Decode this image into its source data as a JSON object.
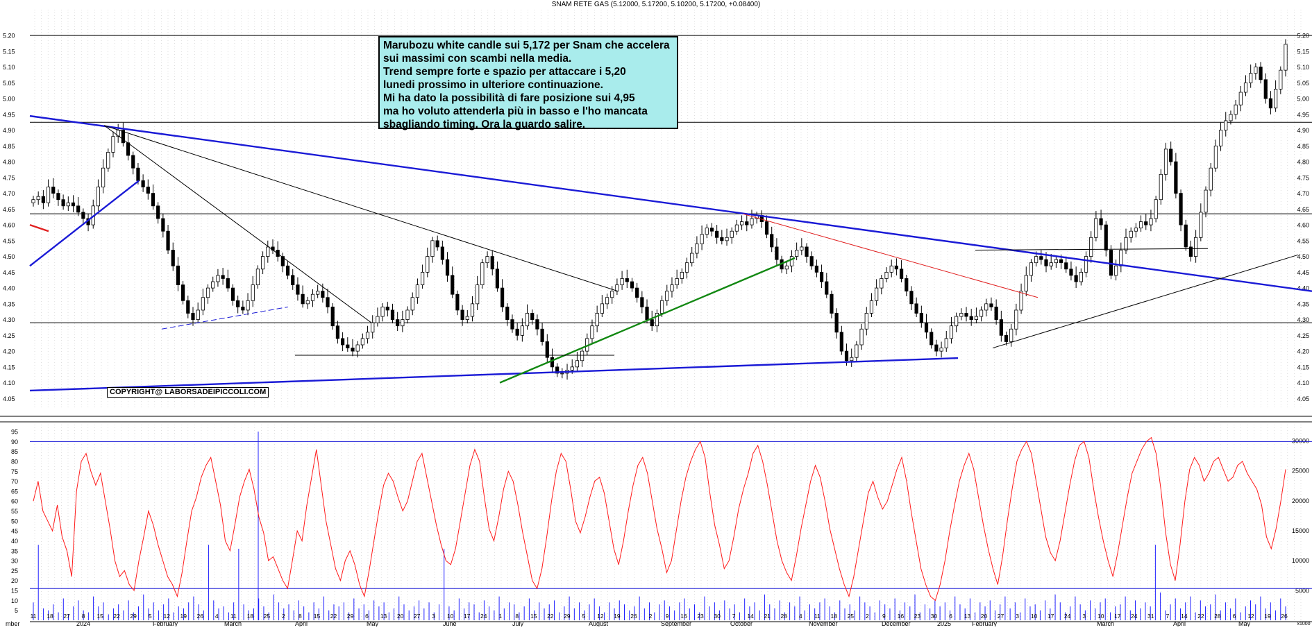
{
  "header": {
    "title": "SNAM RETE GAS (5.12000, 5.17200, 5.10200, 5.17200, +0.08400)"
  },
  "note": {
    "lines": [
      "Marubozu white candle sui 5,172 per Snam che accelera",
      "sui massimi con scambi nella media.",
      "Trend sempre forte e spazio per attaccare i 5,20",
      "lunedi prossimo in ulteriore continuazione.",
      "Mi ha dato la possibilità di fare posizione sui 4,95",
      "ma ho voluto attenderla più in basso e l'ho mancata",
      "sbagliando timing. Ora la guardo salire."
    ]
  },
  "copyright": "COPYRIGHT@ LABORSADEIPICCOLI.COM",
  "chart_data": [
    {
      "type": "candlestick",
      "panel": "price",
      "ylim": [
        4.02,
        5.22
      ],
      "yticks": [
        "5.20",
        "5.15",
        "5.10",
        "5.05",
        "5.00",
        "4.95",
        "4.90",
        "4.85",
        "4.80",
        "4.75",
        "4.70",
        "4.65",
        "4.60",
        "4.55",
        "4.50",
        "4.45",
        "4.40",
        "4.35",
        "4.30",
        "4.25",
        "4.20",
        "4.15",
        "4.10",
        "4.05"
      ],
      "ytick_values": [
        5.2,
        5.15,
        5.1,
        5.05,
        5.0,
        4.95,
        4.9,
        4.85,
        4.8,
        4.75,
        4.7,
        4.65,
        4.6,
        4.55,
        4.5,
        4.45,
        4.4,
        4.35,
        4.3,
        4.25,
        4.2,
        4.15,
        4.1,
        4.05
      ],
      "horizontal_levels": [
        5.2,
        4.925,
        4.635,
        4.29
      ],
      "last": {
        "open": 5.12,
        "high": 5.172,
        "low": 5.102,
        "close": 5.172,
        "change": 0.084
      },
      "closes": [
        4.68,
        4.69,
        4.67,
        4.72,
        4.7,
        4.68,
        4.66,
        4.67,
        4.66,
        4.64,
        4.62,
        4.6,
        4.66,
        4.72,
        4.78,
        4.83,
        4.88,
        4.9,
        4.86,
        4.82,
        4.78,
        4.74,
        4.72,
        4.7,
        4.66,
        4.62,
        4.58,
        4.52,
        4.47,
        4.41,
        4.36,
        4.32,
        4.3,
        4.33,
        4.37,
        4.4,
        4.42,
        4.44,
        4.43,
        4.4,
        4.36,
        4.34,
        4.33,
        4.36,
        4.41,
        4.46,
        4.5,
        4.53,
        4.52,
        4.5,
        4.47,
        4.44,
        4.41,
        4.38,
        4.35,
        4.36,
        4.38,
        4.39,
        4.37,
        4.34,
        4.28,
        4.24,
        4.22,
        4.21,
        4.2,
        4.22,
        4.24,
        4.26,
        4.29,
        4.31,
        4.34,
        4.33,
        4.3,
        4.28,
        4.3,
        4.33,
        4.37,
        4.41,
        4.45,
        4.5,
        4.55,
        4.53,
        4.49,
        4.44,
        4.38,
        4.33,
        4.3,
        4.31,
        4.35,
        4.41,
        4.48,
        4.5,
        4.46,
        4.4,
        4.34,
        4.3,
        4.27,
        4.25,
        4.28,
        4.32,
        4.3,
        4.27,
        4.23,
        4.18,
        4.15,
        4.13,
        4.13,
        4.14,
        4.15,
        4.17,
        4.2,
        4.24,
        4.28,
        4.32,
        4.35,
        4.37,
        4.39,
        4.41,
        4.43,
        4.42,
        4.4,
        4.37,
        4.34,
        4.3,
        4.28,
        4.32,
        4.36,
        4.39,
        4.41,
        4.43,
        4.45,
        4.48,
        4.51,
        4.54,
        4.57,
        4.59,
        4.58,
        4.56,
        4.55,
        4.56,
        4.58,
        4.6,
        4.61,
        4.6,
        4.62,
        4.63,
        4.61,
        4.57,
        4.53,
        4.49,
        4.46,
        4.47,
        4.5,
        4.52,
        4.53,
        4.5,
        4.47,
        4.45,
        4.42,
        4.38,
        4.32,
        4.26,
        4.2,
        4.17,
        4.18,
        4.22,
        4.27,
        4.32,
        4.36,
        4.4,
        4.43,
        4.45,
        4.47,
        4.46,
        4.43,
        4.39,
        4.35,
        4.32,
        4.29,
        4.26,
        4.22,
        4.2,
        4.21,
        4.24,
        4.28,
        4.31,
        4.32,
        4.31,
        4.3,
        4.31,
        4.33,
        4.35,
        4.34,
        4.3,
        4.25,
        4.23,
        4.27,
        4.33,
        4.39,
        4.44,
        4.48,
        4.5,
        4.49,
        4.47,
        4.48,
        4.49,
        4.48,
        4.46,
        4.44,
        4.42,
        4.45,
        4.5,
        4.56,
        4.62,
        4.6,
        4.52,
        4.44,
        4.47,
        4.52,
        4.56,
        4.58,
        4.59,
        4.61,
        4.6,
        4.62,
        4.68,
        4.76,
        4.84,
        4.8,
        4.7,
        4.6,
        4.53,
        4.5,
        4.56,
        4.64,
        4.71,
        4.78,
        4.85,
        4.9,
        4.93,
        4.95,
        4.98,
        5.02,
        5.05,
        5.08,
        5.1,
        5.06,
        5.0,
        4.97,
        5.03,
        5.09,
        5.172
      ],
      "trendlines_note": "blue descending resistance, blue ascending support, grey/black short-term trendlines, green rising support, red falling trendline",
      "x_month_labels": [
        "mber",
        "2024",
        "February",
        "March",
        "April",
        "May",
        "June",
        "July",
        "August",
        "September",
        "October",
        "November",
        "December",
        "2025",
        "February",
        "March",
        "April",
        "May"
      ],
      "x_day_labels": [
        "11",
        "18",
        "27",
        "8",
        "15",
        "22",
        "29",
        "5",
        "12",
        "19",
        "26",
        "4",
        "11",
        "18",
        "25",
        "2",
        "8",
        "15",
        "22",
        "29",
        "6",
        "13",
        "20",
        "27",
        "3",
        "10",
        "17",
        "24",
        "1",
        "8",
        "15",
        "22",
        "29",
        "5",
        "12",
        "19",
        "26",
        "2",
        "9",
        "16",
        "23",
        "30",
        "7",
        "14",
        "21",
        "28",
        "4",
        "11",
        "18",
        "25",
        "2",
        "9",
        "16",
        "23",
        "30",
        "6",
        "13",
        "20",
        "27",
        "3",
        "10",
        "17",
        "24",
        "3",
        "10",
        "17",
        "24",
        "31",
        "7",
        "14",
        "22",
        "28",
        "6",
        "12",
        "19",
        "26"
      ]
    },
    {
      "type": "bar+line",
      "panel": "volume",
      "left_axis": {
        "ylim": [
          0,
          95
        ],
        "ticks": [
          "95",
          "90",
          "85",
          "80",
          "75",
          "70",
          "65",
          "60",
          "55",
          "50",
          "45",
          "40",
          "35",
          "30",
          "25",
          "20",
          "15",
          "10",
          "5"
        ],
        "tick_values": [
          95,
          90,
          85,
          80,
          75,
          70,
          65,
          60,
          55,
          50,
          45,
          40,
          35,
          30,
          25,
          20,
          15,
          10,
          5
        ]
      },
      "right_axis": {
        "ylim": [
          0,
          31500
        ],
        "ticks": [
          "30000",
          "25000",
          "20000",
          "15000",
          "10000",
          "5000"
        ],
        "tick_values": [
          30000,
          25000,
          20000,
          15000,
          10000,
          5000
        ],
        "bottom_label": "x1000"
      },
      "reference_levels_left": [
        90,
        16
      ],
      "series": [
        {
          "kind": "volume_bars",
          "color": "#0000ff",
          "values": [
            9,
            38,
            6,
            5,
            8,
            4,
            11,
            3,
            7,
            10,
            5,
            4,
            12,
            7,
            9,
            3,
            6,
            8,
            5,
            10,
            4,
            7,
            13,
            6,
            9,
            5,
            8,
            11,
            4,
            7,
            6,
            9,
            12,
            8,
            5,
            38,
            10,
            6,
            7,
            4,
            9,
            36,
            8,
            5,
            6,
            11,
            7,
            4,
            13,
            9,
            6,
            8,
            5,
            10,
            7,
            4,
            9,
            6,
            12,
            5,
            8,
            7,
            9,
            4,
            11,
            6,
            8,
            5,
            10,
            7,
            9,
            4,
            6,
            12,
            8,
            5,
            7,
            10,
            6,
            9,
            4,
            8,
            36,
            7,
            5,
            11,
            6,
            9,
            8,
            4,
            10,
            7,
            5,
            12,
            6,
            9,
            8,
            4,
            7,
            11,
            5,
            9,
            6,
            8,
            10,
            4,
            7,
            12,
            6,
            9,
            5,
            8,
            11,
            7,
            4,
            9,
            6,
            10,
            8,
            5,
            7,
            12,
            6,
            9,
            4,
            8,
            10,
            7,
            5,
            9,
            11,
            6,
            8,
            4,
            12,
            7,
            9,
            5,
            10,
            6,
            8,
            4,
            11,
            7,
            9,
            5,
            13,
            8,
            6,
            10,
            4,
            9,
            7,
            12,
            5,
            8,
            6,
            9,
            11,
            7,
            4,
            10,
            6,
            8,
            5,
            12,
            9,
            7,
            4,
            10,
            8,
            6,
            11,
            5,
            9,
            7,
            13,
            4,
            8,
            6,
            10,
            7,
            9,
            5,
            12,
            8,
            6,
            11,
            4,
            9,
            7,
            10,
            5,
            8,
            12,
            6,
            9,
            4,
            11,
            7,
            8,
            5,
            10,
            6,
            13,
            9,
            4,
            7,
            12,
            8,
            5,
            10,
            6,
            9,
            11,
            4,
            7,
            8,
            12,
            5,
            10,
            6,
            9,
            7,
            38,
            14,
            5,
            8,
            11,
            6,
            9,
            12,
            4,
            10,
            7,
            8,
            13,
            5,
            9,
            6,
            11,
            4,
            7,
            10,
            8,
            12,
            6,
            9,
            5,
            11,
            7
          ]
        },
        {
          "kind": "oscillator_line",
          "color": "#ff0000",
          "values": [
            60,
            70,
            55,
            50,
            45,
            58,
            42,
            35,
            22,
            65,
            80,
            84,
            75,
            68,
            74,
            60,
            46,
            30,
            22,
            25,
            18,
            15,
            30,
            42,
            55,
            48,
            38,
            30,
            22,
            18,
            12,
            24,
            40,
            55,
            62,
            72,
            78,
            82,
            70,
            58,
            40,
            35,
            48,
            62,
            70,
            76,
            66,
            52,
            44,
            30,
            32,
            26,
            20,
            16,
            30,
            45,
            40,
            58,
            72,
            86,
            68,
            50,
            38,
            26,
            20,
            30,
            35,
            28,
            18,
            12,
            25,
            40,
            55,
            68,
            74,
            70,
            62,
            55,
            60,
            70,
            80,
            84,
            72,
            60,
            48,
            38,
            30,
            28,
            36,
            50,
            64,
            78,
            86,
            80,
            62,
            46,
            40,
            52,
            66,
            75,
            70,
            58,
            44,
            32,
            20,
            16,
            26,
            42,
            60,
            75,
            84,
            80,
            66,
            50,
            44,
            52,
            62,
            70,
            72,
            64,
            50,
            36,
            28,
            40,
            55,
            68,
            78,
            82,
            74,
            60,
            46,
            36,
            24,
            30,
            45,
            60,
            72,
            80,
            86,
            90,
            82,
            64,
            48,
            38,
            26,
            30,
            42,
            56,
            66,
            74,
            84,
            88,
            80,
            68,
            54,
            40,
            30,
            24,
            20,
            32,
            46,
            58,
            70,
            78,
            72,
            60,
            46,
            36,
            26,
            18,
            12,
            22,
            36,
            50,
            64,
            70,
            62,
            56,
            60,
            68,
            76,
            82,
            70,
            54,
            40,
            26,
            18,
            12,
            10,
            18,
            30,
            45,
            58,
            70,
            78,
            84,
            76,
            62,
            48,
            36,
            26,
            18,
            32,
            50,
            66,
            80,
            86,
            90,
            84,
            70,
            56,
            42,
            34,
            30,
            40,
            54,
            68,
            80,
            88,
            90,
            82,
            66,
            52,
            40,
            30,
            22,
            34,
            48,
            62,
            74,
            80,
            86,
            90,
            92,
            84,
            66,
            44,
            28,
            20,
            38,
            60,
            76,
            82,
            78,
            70,
            74,
            80,
            82,
            76,
            70,
            72,
            78,
            80,
            74,
            70,
            66,
            58,
            42,
            36,
            46,
            60,
            76
          ]
        }
      ]
    }
  ]
}
